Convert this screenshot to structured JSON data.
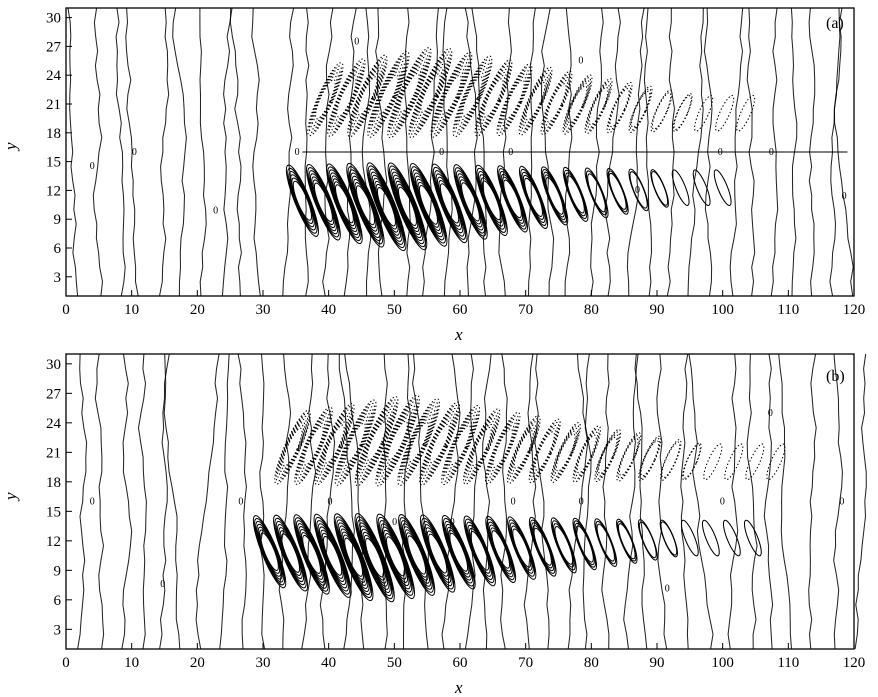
{
  "chart_data": [
    {
      "type": "contour",
      "panel_label": "(a)",
      "xlabel": "x",
      "ylabel": "y",
      "xlim": [
        0,
        120
      ],
      "ylim": [
        1,
        31
      ],
      "x_ticks": [
        0,
        10,
        20,
        30,
        40,
        50,
        60,
        70,
        80,
        90,
        100,
        110,
        120
      ],
      "y_ticks": [
        3,
        6,
        9,
        12,
        15,
        18,
        21,
        24,
        27,
        30
      ],
      "solid_lines": "positive",
      "dotted_lines": "negative",
      "zero_label": "0",
      "wave_packet": {
        "x_start": 36,
        "x_peak": 52,
        "x_end": 105,
        "interface_y": 16
      }
    },
    {
      "type": "contour",
      "panel_label": "(b)",
      "xlabel": "x",
      "ylabel": "y",
      "xlim": [
        0,
        120
      ],
      "ylim": [
        1,
        31
      ],
      "x_ticks": [
        0,
        10,
        20,
        30,
        40,
        50,
        60,
        70,
        80,
        90,
        100,
        110,
        120
      ],
      "y_ticks": [
        3,
        6,
        9,
        12,
        15,
        18,
        21,
        24,
        27,
        30
      ],
      "solid_lines": "positive",
      "dotted_lines": "negative",
      "zero_label": "0",
      "wave_packet": {
        "x_start": 31,
        "x_peak": 48,
        "x_end": 108,
        "interface_y": 16
      }
    }
  ]
}
